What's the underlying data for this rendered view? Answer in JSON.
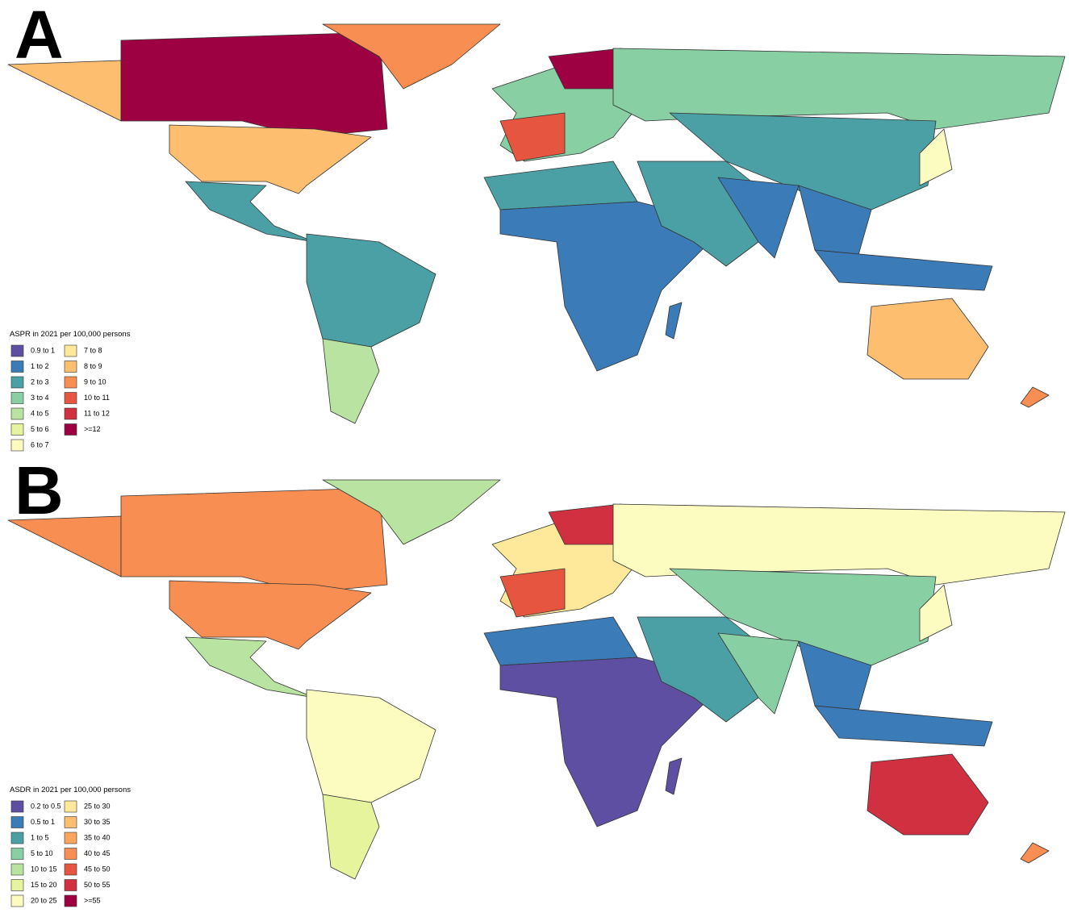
{
  "panels": [
    {
      "label": "A",
      "legend": {
        "title": "ASPR in 2021 per 100,000 persons",
        "items": [
          {
            "label": "0.9 to 1",
            "color": "#5e4fa2"
          },
          {
            "label": "1 to 2",
            "color": "#3a7bb8"
          },
          {
            "label": "2 to 3",
            "color": "#4aa0a5"
          },
          {
            "label": "3 to 4",
            "color": "#88cfa4"
          },
          {
            "label": "4 to 5",
            "color": "#b9e3a0"
          },
          {
            "label": "5 to 6",
            "color": "#e6f59d"
          },
          {
            "label": "6 to 7",
            "color": "#fcfbc0"
          },
          {
            "label": "7 to 8",
            "color": "#fee99a"
          },
          {
            "label": "8 to 9",
            "color": "#fdbf6f"
          },
          {
            "label": "9 to 10",
            "color": "#f98e52"
          },
          {
            "label": "10 to 11",
            "color": "#e5553f"
          },
          {
            "label": "11 to 12",
            "color": "#d0303f"
          },
          {
            "label": ">=12",
            "color": "#9e0142"
          }
        ]
      }
    },
    {
      "label": "B",
      "legend": {
        "title": "ASDR in 2021 per 100,000 persons",
        "items": [
          {
            "label": "0.2 to 0.5",
            "color": "#5e4fa2"
          },
          {
            "label": "0.5 to 1",
            "color": "#3a7bb8"
          },
          {
            "label": "1 to 5",
            "color": "#4aa0a5"
          },
          {
            "label": "5 to 10",
            "color": "#88cfa4"
          },
          {
            "label": "10 to 15",
            "color": "#b9e3a0"
          },
          {
            "label": "15 to 20",
            "color": "#e6f59d"
          },
          {
            "label": "20 to 25",
            "color": "#fcfbc0"
          },
          {
            "label": "25 to 30",
            "color": "#fee99a"
          },
          {
            "label": "30 to 35",
            "color": "#fdbf6f"
          },
          {
            "label": "35 to 40",
            "color": "#fca55d"
          },
          {
            "label": "40 to 45",
            "color": "#f98e52"
          },
          {
            "label": "45 to 50",
            "color": "#e5553f"
          },
          {
            "label": "50 to 55",
            "color": "#d0303f"
          },
          {
            "label": ">=55",
            "color": "#9e0142"
          }
        ]
      }
    }
  ]
}
